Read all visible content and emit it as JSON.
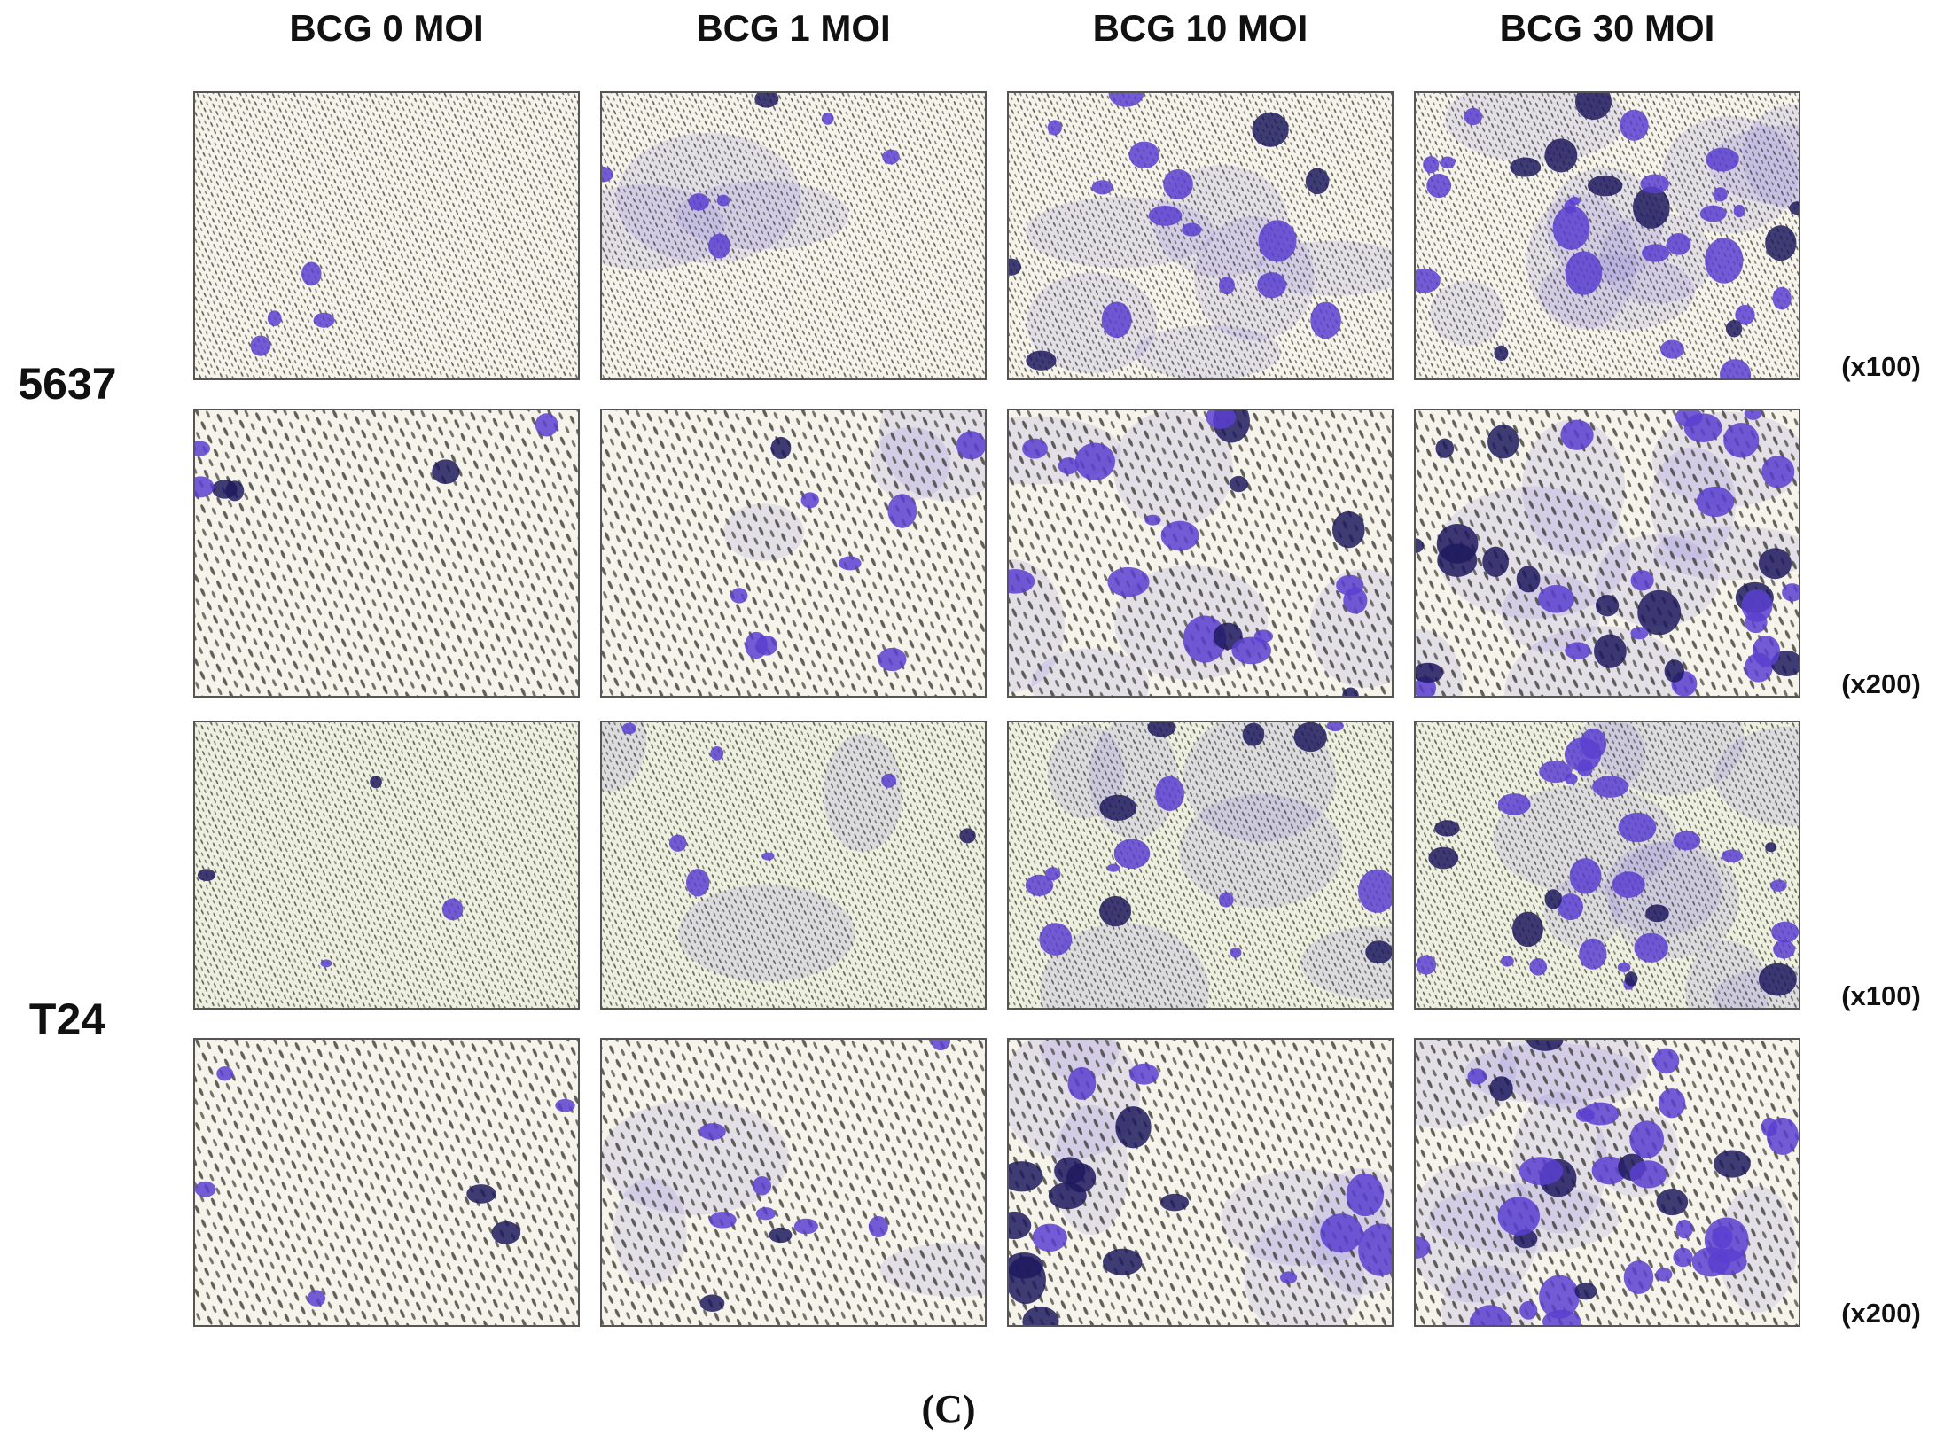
{
  "columns": [
    "BCG 0 MOI",
    "BCG 1 MOI",
    "BCG 10 MOI",
    "BCG 30 MOI"
  ],
  "rows": [
    {
      "cell_line": "5637",
      "magnifications": [
        "(x100)",
        "(x200)"
      ]
    },
    {
      "cell_line": "T24",
      "magnifications": [
        "(x100)",
        "(x200)"
      ]
    }
  ],
  "panel_label": "(C)"
}
